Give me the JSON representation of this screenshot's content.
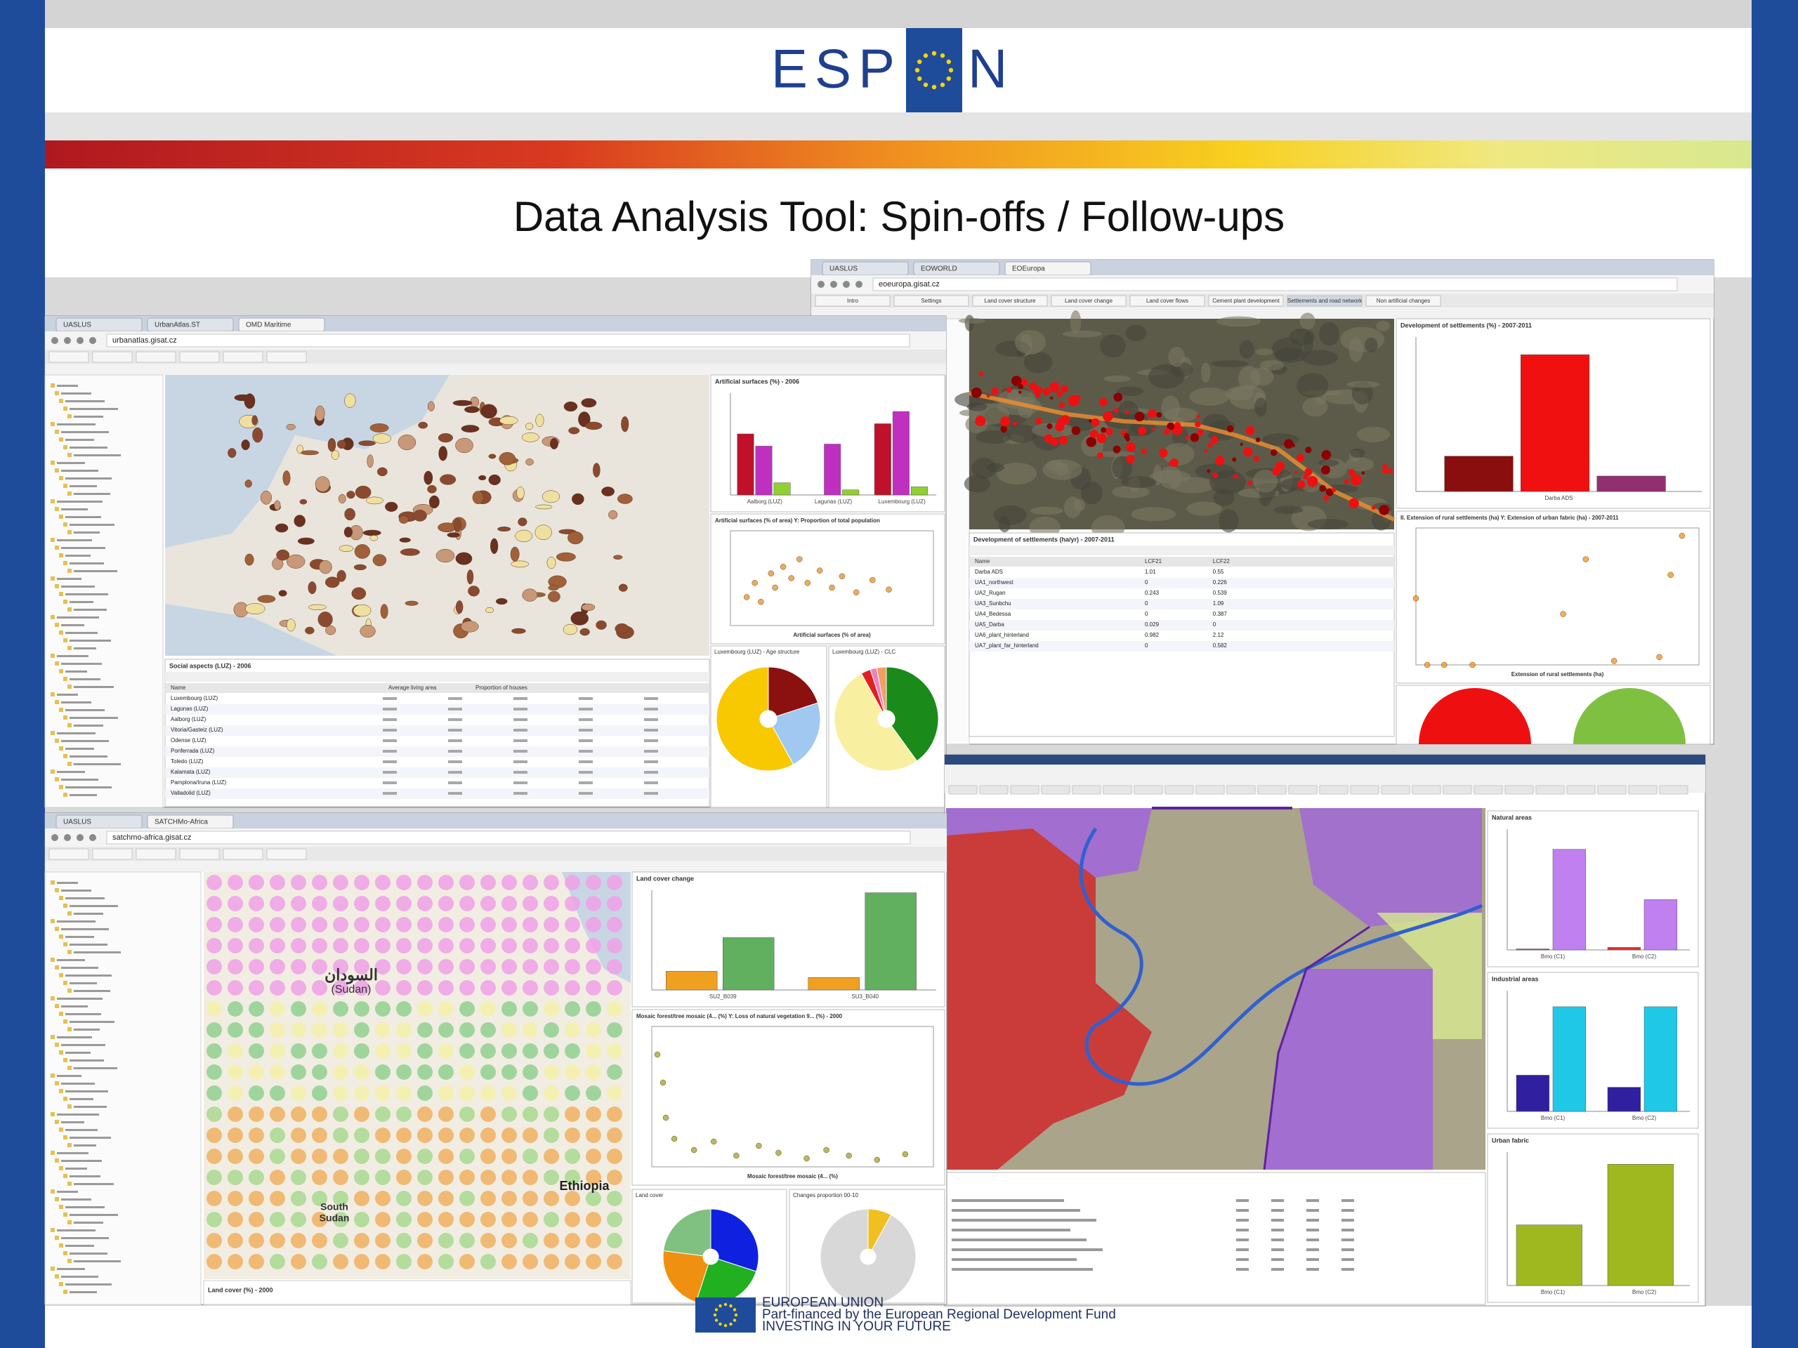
{
  "header": {
    "logo_left": "ESP",
    "logo_right": "N"
  },
  "title": "Data Analysis Tool: Spin-offs / Follow-ups",
  "screenshots": [
    {
      "tabs": [
        "UASLUS",
        "UrbanAtlas.ST",
        "OMD Maritime"
      ],
      "url": "urbanatlas.gisat.cz",
      "bar_chart": {
        "title": "Artificial surfaces (%) - 2006",
        "categories": [
          "Aalborg (LUZ)",
          "Lagunas (LUZ)",
          "Luxembourg (LUZ)"
        ],
        "ylim": [
          0,
          100
        ],
        "series": [
          {
            "color": "#c0102a",
            "values": [
              60,
              0,
              70
            ]
          },
          {
            "color": "#c030c0",
            "values": [
              48,
              50,
              82
            ]
          },
          {
            "color": "#90d030",
            "values": [
              12,
              5,
              8
            ]
          }
        ]
      },
      "scatter": {
        "title": "Artificial surfaces (% of area) Y: Proportion of total population",
        "x_label": "Artificial surfaces (% of area)",
        "xlim": [
          0,
          100
        ],
        "ylim": [
          0,
          100
        ],
        "color": "#e09030",
        "x": [
          8,
          12,
          15,
          20,
          22,
          26,
          30,
          34,
          38,
          44,
          50,
          55,
          62,
          70,
          78
        ],
        "y": [
          30,
          45,
          25,
          55,
          40,
          62,
          50,
          70,
          45,
          58,
          40,
          52,
          35,
          48,
          38
        ]
      },
      "table": {
        "title": "Social aspects (LUZ) - 2006",
        "columns": [
          "Name",
          "Average living area",
          "Proportion of houses"
        ],
        "rows": [
          "Luxembourg (LUZ)",
          "Lagunas (LUZ)",
          "Aalborg (LUZ)",
          "Vitoria/Gasteiz (LUZ)",
          "Odense (LUZ)",
          "Ponferrada (LUZ)",
          "Toledo (LUZ)",
          "Kalamata (LUZ)",
          "Pamplona/Iruna (LUZ)",
          "Valladolid (LUZ)"
        ]
      },
      "pies": [
        {
          "title": "Luxembourg (LUZ) - Age structure",
          "values": [
            20,
            22,
            58
          ],
          "colors": [
            "#8b1010",
            "#a0c8f0",
            "#f8c800"
          ]
        },
        {
          "title": "Luxembourg (LUZ) - CLC",
          "values": [
            40,
            52,
            3,
            2,
            3
          ],
          "colors": [
            "#1a8a1a",
            "#f8f0a0",
            "#e02020",
            "#f080c0",
            "#f0a060"
          ]
        }
      ]
    },
    {
      "tabs": [
        "UASLUS",
        "EOWORLD",
        "EOEuropa"
      ],
      "url": "eoeuropa.gisat.cz",
      "menu": [
        "Intro",
        "Settings",
        "Land cover structure",
        "Land cover change",
        "Land cover flows",
        "Cement plant development",
        "Settlements and road network",
        "Non artificial changes"
      ],
      "bar_chart": {
        "title": "Development of settlements (%) - 2007-2011",
        "categories": [
          "Darba ADS"
        ],
        "ylim": [
          0,
          7
        ],
        "series": [
          {
            "color": "#8b0e0e",
            "values": [
              1.6
            ]
          },
          {
            "color": "#f01010",
            "values": [
              6.2
            ]
          },
          {
            "color": "#903070",
            "values": [
              0.7
            ]
          }
        ]
      },
      "scatter": {
        "title": "II. Extension of rural settlements (ha) Y: Extension of urban fabric (ha) - 2007-2011",
        "x_label": "Extension of rural settlements (ha)",
        "xlim": [
          0,
          10
        ],
        "ylim": [
          0,
          3.5
        ],
        "color": "#f09020",
        "x": [
          0,
          0.4,
          1,
          2,
          5.2,
          6,
          7,
          8.6,
          9,
          9.4
        ],
        "y": [
          1.7,
          0,
          0,
          0,
          1.3,
          2.7,
          0.1,
          0.2,
          2.3,
          3.3
        ]
      },
      "table": {
        "title": "Development of settlements (ha/yr) - 2007-2011",
        "columns": [
          "Name",
          "LCF21",
          "LCF22"
        ],
        "rows": [
          [
            "Darba ADS",
            "1.01",
            "0.55"
          ],
          [
            "UA1_northwest",
            "0",
            "0.226"
          ],
          [
            "UA2_Rugan",
            "0.243",
            "0.539"
          ],
          [
            "UA3_Sunbchu",
            "0",
            "1.09"
          ],
          [
            "UA4_Bedessa",
            "0",
            "0.387"
          ],
          [
            "UA5_Darba",
            "0.029",
            "0"
          ],
          [
            "UA6_plant_hinterland",
            "0.982",
            "2.12"
          ],
          [
            "UA7_plant_far_hinterland",
            "0",
            "0.582"
          ]
        ]
      }
    },
    {
      "tabs": [
        "UASLUS",
        "SATCHMo-Africa"
      ],
      "url": "satchmo-africa.gisat.cz",
      "map_labels": [
        "السودان",
        "(Sudan)",
        "Ethiopia",
        "South",
        "Sudan"
      ],
      "bar_chart": {
        "title": "Land cover change",
        "categories": [
          "SU2_B039",
          "SU3_B040"
        ],
        "ylim": [
          0,
          80
        ],
        "series": [
          {
            "color": "#f0a020",
            "values": [
              15,
              10
            ]
          },
          {
            "color": "#60b060",
            "values": [
              42,
              78
            ]
          }
        ]
      },
      "scatter": {
        "title": "Mosaic forest/tree mosaic (4... (%) Y: Loss of natural vegetation 9... (%) - 2000",
        "x_label": "Mosaic forest/tree mosaic (4... (%)",
        "xlim": [
          0,
          100
        ],
        "ylim": [
          0,
          100
        ],
        "color": "#a0a030",
        "x": [
          2,
          4,
          5,
          8,
          15,
          22,
          30,
          38,
          45,
          55,
          62,
          70,
          80,
          90
        ],
        "y": [
          80,
          60,
          35,
          20,
          12,
          18,
          8,
          15,
          10,
          6,
          12,
          8,
          5,
          9
        ]
      },
      "footer_label": "Land cover (%) - 2000",
      "pies": [
        {
          "title": "Land cover",
          "values": [
            30,
            25,
            22,
            23
          ],
          "colors": [
            "#1020e0",
            "#20b020",
            "#f09010",
            "#80c080"
          ]
        },
        {
          "title": "Changes proportion 00-10",
          "values": [
            8,
            92
          ],
          "colors": [
            "#f0c020",
            "#d8d8d8"
          ]
        }
      ]
    },
    {
      "charts": [
        {
          "title": "Natural areas",
          "categories": [
            "Bmo (C1)",
            "Bmo (C2)"
          ],
          "ylim": [
            0,
            2.4
          ],
          "series": [
            {
              "color": "#e03030",
              "values": [
                0.02,
                0.05
              ]
            },
            {
              "color": "#c080f0",
              "values": [
                2.0,
                1.0
              ]
            }
          ]
        },
        {
          "title": "Industrial areas",
          "categories": [
            "Bmo (C1)",
            "Bmo (C2)"
          ],
          "ylim": [
            0,
            3
          ],
          "series": [
            {
              "color": "#3020a0",
              "values": [
                0.9,
                0.6
              ]
            },
            {
              "color": "#20c8e8",
              "values": [
                2.6,
                2.6
              ]
            }
          ]
        },
        {
          "title": "Urban fabric",
          "categories": [
            "Bmo (C1)",
            "Bmo (C2)"
          ],
          "ylim": [
            0,
            2.2
          ],
          "series": [
            {
              "color": "#a0b820",
              "values": [
                1.0,
                2.0
              ]
            }
          ]
        }
      ]
    }
  ],
  "footer": {
    "eu": "EUROPEAN UNION",
    "line1": "Part-financed by the European Regional Development Fund",
    "line2": "INVESTING IN YOUR FUTURE"
  }
}
